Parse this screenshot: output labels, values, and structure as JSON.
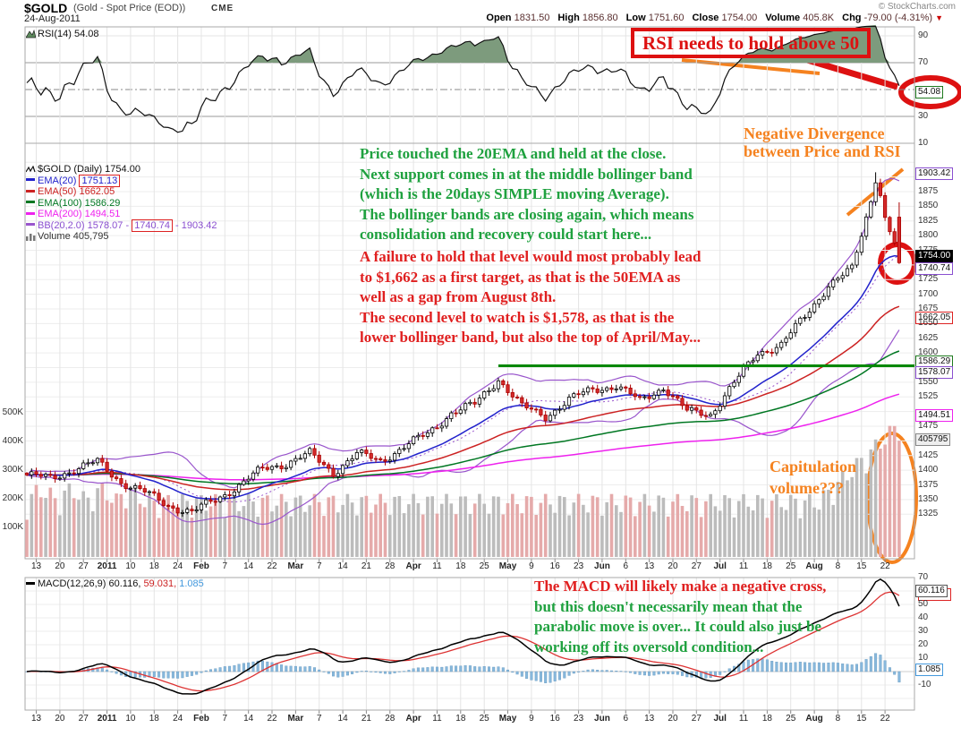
{
  "header": {
    "symbol": "$GOLD",
    "name": "(Gold - Spot Price (EOD))",
    "exchange": "CME",
    "date": "24-Aug-2011",
    "copyright": "© StockCharts.com",
    "quote": [
      {
        "label": "Open",
        "value": "1831.50"
      },
      {
        "label": "High",
        "value": "1856.80"
      },
      {
        "label": "Low",
        "value": "1751.60"
      },
      {
        "label": "Close",
        "value": "1754.00"
      },
      {
        "label": "Volume",
        "value": "405.8K"
      },
      {
        "label": "Chg",
        "value": "-79.00 (-4.31%)"
      }
    ]
  },
  "rsi_panel": {
    "label": "RSI(14)",
    "value": "54.08"
  },
  "macd_panel": {
    "label": "MACD(12,26,9)",
    "v1": "60.116,",
    "v2": "59.031,",
    "v3": "1.085"
  },
  "legend": {
    "gold_text": "$GOLD (Daily) 1754.00",
    "ema20_label": "EMA(20)",
    "ema20_value": "1751.13",
    "ema50_text": "EMA(50) 1662.05",
    "ema100_text": "EMA(100) 1586.29",
    "ema200_text": "EMA(200) 1494.51",
    "bb_label": "BB(20,2.0) 1578.07 -",
    "bb_mid": "1740.74",
    "bb_tail": "- 1903.42",
    "volume_text": "Volume 405,795"
  },
  "boxes": {
    "rsi": "54.08",
    "bb_upper": "1903.42",
    "close": "1754.00",
    "bb_mid": "1740.74",
    "ema50": "1662.05",
    "ema100": "1586.29",
    "bb_lower": "1578.07",
    "ema200": "1494.51",
    "volume": "405795",
    "macd": "60.116",
    "macd_signal": "59.031",
    "macd_hist": "1.085"
  },
  "annotations": {
    "rsi_note": "RSI needs to hold above 50",
    "negdiv_note": "Negative Divergence\nbetween Price and RSI",
    "green_note": "Price touched the 20EMA and held at the close.\nNext support comes in at the middle bollinger band\n(which is the 20days SIMPLE moving Average).\nThe bollinger bands are closing again, which means\nconsolidation and recovery could start here...",
    "red_note": "A failure to hold that level would most probably lead\nto $1,662 as a first target, as that is the 50EMA as\nwell as a gap from August 8th.\nThe second level to watch is $1,578, as that is the\nlower bollinger band, but also the top of April/May...",
    "cap_note": "Capitulation\nvolume???",
    "macd_note_red": "The MACD will likely make a negative cross,",
    "macd_note_green": "but this doesn't necessarily mean that the\nparabolic move is over... It could also just be\nworking off its oversold condition..."
  },
  "palette": {
    "candle_up": "#000000",
    "candle_down": "#d42A2a",
    "volume_up": "#bcbcbc",
    "volume_down": "#e5aaaa",
    "ema20": "#2222cc",
    "ema50": "#cc2222",
    "ema100": "#007722",
    "ema200": "#ee22ee",
    "bollinger": "#9955cc",
    "macd_line": "#000000",
    "macd_signal": "#dd3333",
    "macd_hist": "#88b8dc",
    "rsi_line": "#111111",
    "rsi_fill": "#7d9b7d",
    "annotation_red": "#dd1111",
    "annotation_green": "#1fa13f",
    "annotation_orange": "#f5821f",
    "support_green": "#008800"
  },
  "chart_data": {
    "type": "candlestick",
    "symbol": "$GOLD",
    "timeframe": "daily",
    "title": "$GOLD (Gold - Spot Price (EOD)) CME, 24-Aug-2011",
    "x_ticks": [
      "13",
      "20",
      "27",
      "2011",
      "10",
      "18",
      "24",
      "Feb",
      "7",
      "14",
      "22",
      "Mar",
      "7",
      "14",
      "21",
      "28",
      "Apr",
      "11",
      "18",
      "25",
      "May",
      "9",
      "16",
      "23",
      "Jun",
      "6",
      "13",
      "20",
      "27",
      "Jul",
      "11",
      "18",
      "25",
      "Aug",
      "8",
      "15",
      "22"
    ],
    "bold_ticks": [
      "2011",
      "Feb",
      "Mar",
      "Apr",
      "May",
      "Jun",
      "Jul",
      "Aug"
    ],
    "weekly_closes": [
      1392,
      1386,
      1402,
      1414,
      1380,
      1362,
      1340,
      1328,
      1350,
      1374,
      1402,
      1412,
      1428,
      1396,
      1428,
      1416,
      1440,
      1462,
      1498,
      1512,
      1556,
      1508,
      1492,
      1520,
      1538,
      1544,
      1518,
      1542,
      1500,
      1496,
      1548,
      1600,
      1614,
      1662,
      1716,
      1742,
      1890
    ],
    "peak_high": 1908,
    "final_day": {
      "date": "24-Aug-2011",
      "open": 1831.5,
      "high": 1856.8,
      "low": 1751.6,
      "close": 1754.0,
      "volume": 405795,
      "change": -79.0,
      "change_pct": -4.31
    },
    "price_axis": {
      "min": 1325,
      "max": 1875,
      "step": 25,
      "hidden_ticks": [
        1750,
        1575,
        1500,
        1450
      ]
    },
    "volume_axis_labels": [
      "500K",
      "400K",
      "300K",
      "200K",
      "100K"
    ],
    "volume_axis_values": [
      500000,
      400000,
      300000,
      200000,
      100000
    ],
    "overlays": {
      "ema": [
        {
          "period": 20,
          "value": 1751.13
        },
        {
          "period": 50,
          "value": 1662.05
        },
        {
          "period": 100,
          "value": 1586.29
        },
        {
          "period": 200,
          "value": 1494.51
        }
      ],
      "bollinger": {
        "period": 20,
        "stdev": 2.0,
        "lower": 1578.07,
        "middle": 1740.74,
        "upper": 1903.42
      }
    },
    "support_line": {
      "price": 1578,
      "from_tick": "May"
    },
    "rsi": {
      "period": 14,
      "value": 54.08,
      "axis": [
        90,
        70,
        50,
        30,
        10
      ],
      "overbought": 70,
      "oversold": 30,
      "midline": 50
    },
    "macd": {
      "fast": 12,
      "slow": 26,
      "signal": 9,
      "macd_value": 60.116,
      "signal_value": 59.031,
      "hist_value": 1.085,
      "axis": [
        70,
        50,
        40,
        30,
        20,
        10,
        -10
      ]
    }
  }
}
